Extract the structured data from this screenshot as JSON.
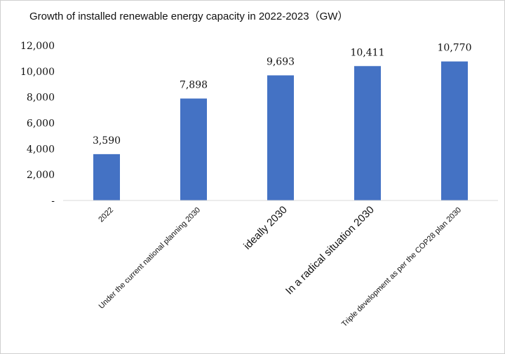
{
  "chart_data": {
    "type": "bar",
    "title": "Growth of installed renewable energy capacity in 2022-2023（GW）",
    "categories": [
      "2022",
      "Under the current national planning 2030",
      "ideally 2030",
      "In a radical situation 2030",
      "Triple development as per the COP28 plan 2030"
    ],
    "values": [
      3590,
      7898,
      9693,
      10411,
      10770
    ],
    "data_labels": [
      "3,590",
      "7,898",
      "9,693",
      "10,411",
      "10,770"
    ],
    "ylim": [
      0,
      12000
    ],
    "yticks": [
      0,
      2000,
      4000,
      6000,
      8000,
      10000,
      12000
    ],
    "ytick_labels": [
      "-",
      "2,000",
      "4,000",
      "6,000",
      "8,000",
      "10,000",
      "12,000"
    ],
    "grid": false,
    "legend": "none",
    "bar_color": "#4472C4"
  }
}
